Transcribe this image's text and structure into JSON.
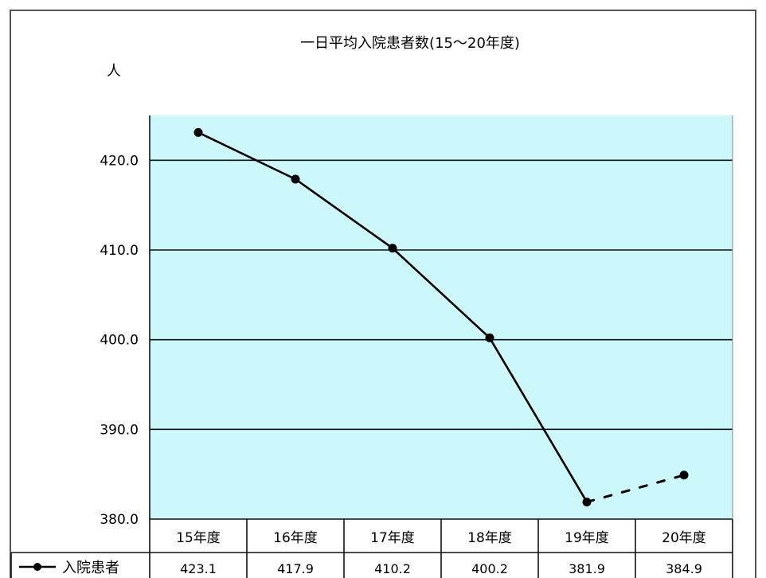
{
  "chart_data": {
    "type": "line",
    "title": "一日平均入院患者数(15〜20年度)",
    "ylabel": "人",
    "xlabel": "",
    "categories": [
      "15年度",
      "16年度",
      "17年度",
      "18年度",
      "19年度",
      "20年度"
    ],
    "series": [
      {
        "name": "入院患者",
        "values": [
          423.1,
          417.9,
          410.2,
          400.2,
          381.9,
          384.9
        ],
        "value_labels": [
          "423.1",
          "417.9",
          "410.2",
          "400.2",
          "381.9",
          "384.9"
        ],
        "dashed_last_segment": true,
        "color": "#000000"
      }
    ],
    "ylim": [
      380,
      425
    ],
    "yticks": [
      380,
      390,
      400,
      410,
      420
    ],
    "ytick_labels": [
      "380.0",
      "390.0",
      "400.0",
      "410.0",
      "420.0"
    ],
    "grid": true,
    "plot_background": "#ccf8fc",
    "data_table": true
  }
}
